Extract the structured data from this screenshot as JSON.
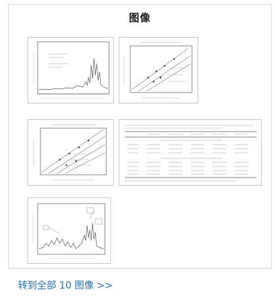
{
  "section": {
    "title": "图像",
    "more_link": "转到全部 10 图像 >>"
  },
  "thumbnails": [
    {
      "name": "figure-1-spectrum-thumbnail",
      "kind": "line-spectrum"
    },
    {
      "name": "figure-2-comparison-plot-thumbnail",
      "kind": "scatter-lines"
    },
    {
      "name": "figure-3-comparison-plot-thumbnail",
      "kind": "scatter-lines"
    },
    {
      "name": "table-1-thumbnail",
      "kind": "table"
    },
    {
      "name": "figure-4-spectrum-thumbnail",
      "kind": "line-spectrum"
    }
  ],
  "colors": {
    "link": "#1f6fb5",
    "border": "#c8c8c8",
    "ink": "#555555"
  }
}
